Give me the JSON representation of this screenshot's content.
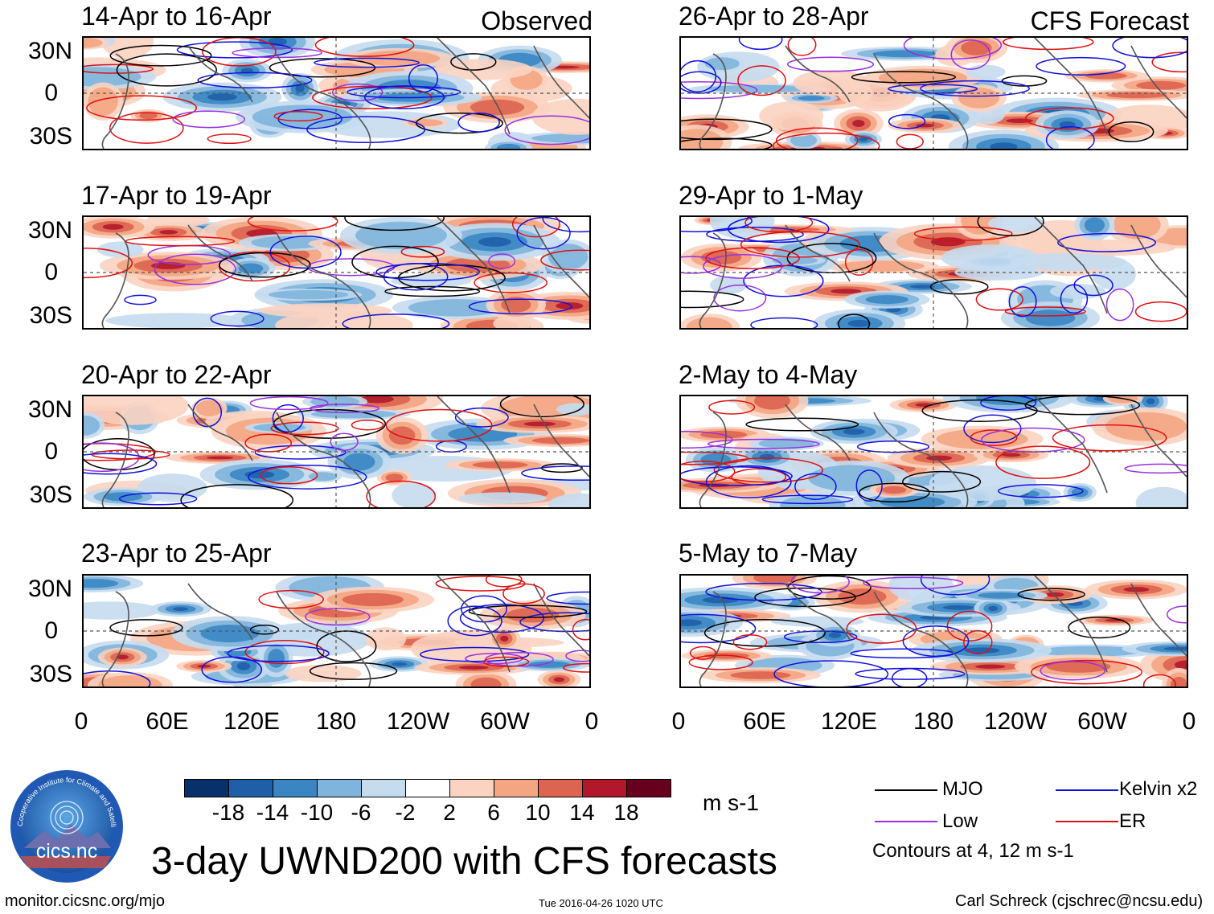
{
  "panels": [
    {
      "id": "p1",
      "title": "14-Apr to 16-Apr",
      "label": "Observed"
    },
    {
      "id": "p2",
      "title": "26-Apr to 28-Apr",
      "label": "CFS Forecast"
    },
    {
      "id": "p3",
      "title": "17-Apr to 19-Apr",
      "label": ""
    },
    {
      "id": "p4",
      "title": "29-Apr to 1-May",
      "label": ""
    },
    {
      "id": "p5",
      "title": "20-Apr to 22-Apr",
      "label": ""
    },
    {
      "id": "p6",
      "title": "2-May to 4-May",
      "label": ""
    },
    {
      "id": "p7",
      "title": "23-Apr to 25-Apr",
      "label": ""
    },
    {
      "id": "p8",
      "title": "5-May to 7-May",
      "label": ""
    }
  ],
  "lat_ticks": [
    "30N",
    "0",
    "30S"
  ],
  "lon_ticks": [
    "0",
    "60E",
    "120E",
    "180",
    "120W",
    "60W",
    "0"
  ],
  "colorbar": {
    "colors": [
      "#08306b",
      "#1f5fa8",
      "#3a86c4",
      "#7fb5dc",
      "#c5dcef",
      "#ffffff",
      "#fbd3c1",
      "#f4a582",
      "#dd6451",
      "#b2182b",
      "#67001f"
    ],
    "tick_labels": [
      "-18",
      "-14",
      "-10",
      "-6",
      "-2",
      "2",
      "6",
      "10",
      "14",
      "18"
    ],
    "unit": "m s-1"
  },
  "legend": {
    "items": [
      {
        "label": "MJO",
        "color": "#000000"
      },
      {
        "label": "Kelvin x2",
        "color": "#1010e0"
      },
      {
        "label": "Low",
        "color": "#9a30e0"
      },
      {
        "label": "ER",
        "color": "#e01010"
      }
    ],
    "note": "Contours at 4, 12 m s-1"
  },
  "title": "3-day UWND200 with CFS forecasts",
  "footer": {
    "left": "monitor.cicsnc.org/mjo",
    "center": "Tue 2016-04-26 1020 UTC",
    "right": "Carl Schreck (cjschrec@ncsu.edu)"
  },
  "logo": {
    "text": "cics.nc",
    "ring_text": "Cooperative Institute for Climate and Satellites"
  }
}
